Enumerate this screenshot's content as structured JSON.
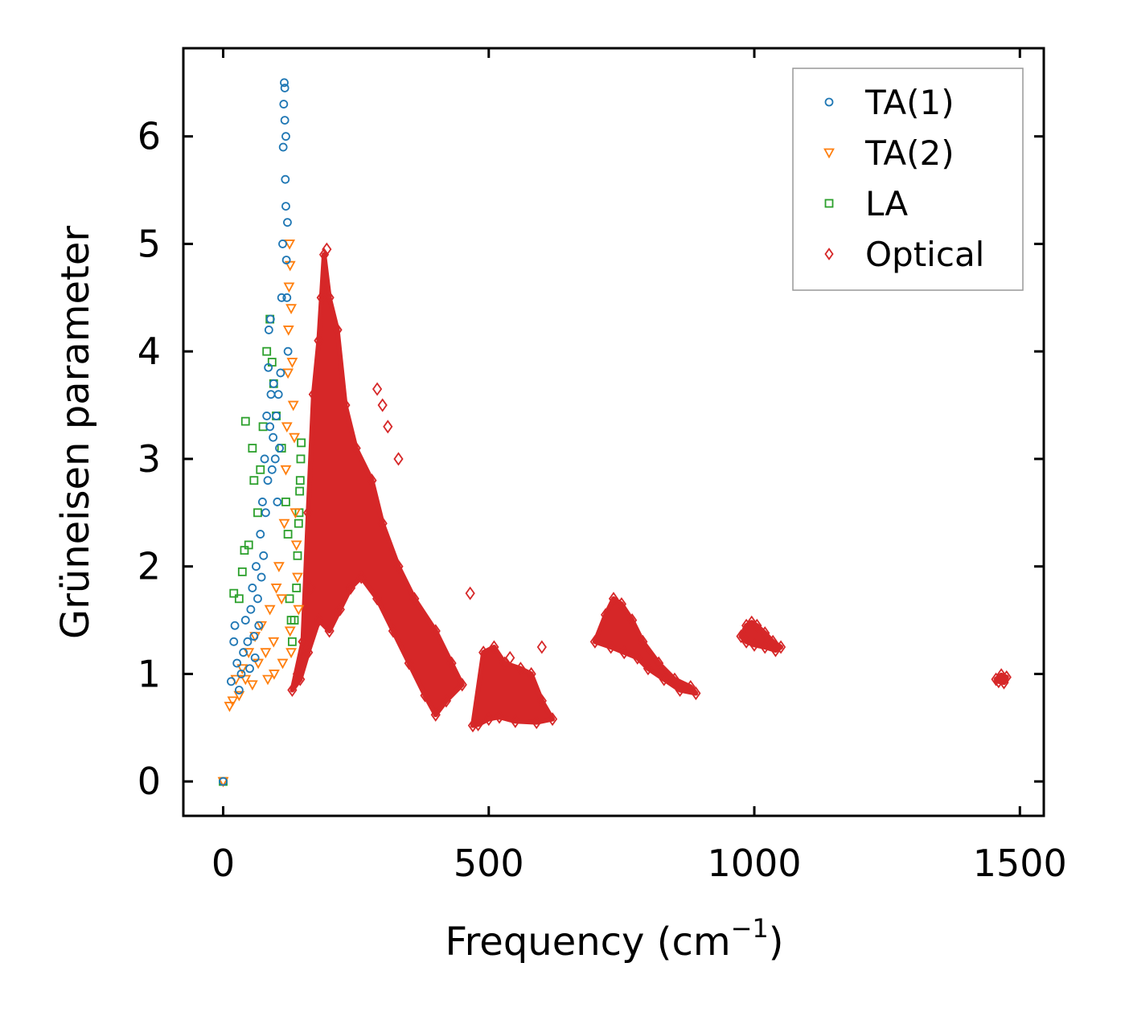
{
  "chart_data": {
    "type": "scatter",
    "title": "",
    "xlabel": "Frequency (cm",
    "xlabel_sup": "−1",
    "xlabel_tail": ")",
    "ylabel": "Grüneisen parameter",
    "xlim": [
      -75,
      1545
    ],
    "ylim": [
      -0.32,
      6.82
    ],
    "xticks": [
      0,
      500,
      1000,
      1500
    ],
    "yticks": [
      0,
      1,
      2,
      3,
      4,
      5,
      6
    ],
    "xtick_labels": [
      "0",
      "500",
      "1000",
      "1500"
    ],
    "ytick_labels": [
      "0",
      "1",
      "2",
      "3",
      "4",
      "5",
      "6"
    ],
    "grid": false,
    "legend_position": "top-right",
    "series": [
      {
        "name": "TA(1)",
        "marker": "circle",
        "color": "#1f77b4",
        "points": [
          [
            0,
            0
          ],
          [
            15,
            0.93
          ],
          [
            20,
            1.3
          ],
          [
            22,
            1.45
          ],
          [
            26,
            1.1
          ],
          [
            30,
            0.85
          ],
          [
            34,
            1.0
          ],
          [
            38,
            1.2
          ],
          [
            42,
            1.5
          ],
          [
            46,
            1.3
          ],
          [
            50,
            1.05
          ],
          [
            52,
            1.6
          ],
          [
            55,
            1.8
          ],
          [
            58,
            1.35
          ],
          [
            60,
            1.15
          ],
          [
            62,
            2.0
          ],
          [
            65,
            1.7
          ],
          [
            67,
            1.45
          ],
          [
            70,
            2.3
          ],
          [
            72,
            1.9
          ],
          [
            74,
            2.6
          ],
          [
            76,
            2.1
          ],
          [
            78,
            3.0
          ],
          [
            80,
            2.5
          ],
          [
            82,
            3.4
          ],
          [
            84,
            2.8
          ],
          [
            85,
            3.85
          ],
          [
            86,
            4.2
          ],
          [
            88,
            3.3
          ],
          [
            89,
            4.3
          ],
          [
            90,
            3.6
          ],
          [
            92,
            2.9
          ],
          [
            94,
            3.2
          ],
          [
            95,
            3.7
          ],
          [
            98,
            3.0
          ],
          [
            100,
            3.4
          ],
          [
            102,
            2.6
          ],
          [
            104,
            3.6
          ],
          [
            106,
            3.1
          ],
          [
            108,
            3.8
          ],
          [
            110,
            4.5
          ],
          [
            112,
            5.0
          ],
          [
            113,
            5.9
          ],
          [
            114,
            6.3
          ],
          [
            115,
            6.5
          ],
          [
            116,
            6.45
          ],
          [
            117,
            5.6
          ],
          [
            118,
            5.35
          ],
          [
            119,
            4.85
          ],
          [
            120,
            4.5
          ],
          [
            122,
            4.0
          ],
          [
            121,
            5.2
          ],
          [
            118,
            6.0
          ],
          [
            116,
            6.15
          ]
        ]
      },
      {
        "name": "TA(2)",
        "marker": "triangle-down",
        "color": "#ff7f0e",
        "points": [
          [
            0,
            0
          ],
          [
            12,
            0.7
          ],
          [
            18,
            0.75
          ],
          [
            24,
            0.95
          ],
          [
            30,
            0.8
          ],
          [
            36,
            1.05
          ],
          [
            42,
            0.95
          ],
          [
            48,
            1.2
          ],
          [
            55,
            0.9
          ],
          [
            60,
            1.35
          ],
          [
            66,
            1.1
          ],
          [
            72,
            1.45
          ],
          [
            80,
            1.2
          ],
          [
            88,
            1.6
          ],
          [
            95,
            1.3
          ],
          [
            100,
            1.8
          ],
          [
            105,
            2.0
          ],
          [
            110,
            1.7
          ],
          [
            115,
            2.4
          ],
          [
            118,
            2.9
          ],
          [
            120,
            3.3
          ],
          [
            122,
            3.8
          ],
          [
            123,
            4.2
          ],
          [
            124,
            4.6
          ],
          [
            125,
            5.0
          ],
          [
            126,
            4.8
          ],
          [
            128,
            4.4
          ],
          [
            130,
            3.9
          ],
          [
            132,
            3.5
          ],
          [
            134,
            3.2
          ],
          [
            136,
            2.5
          ],
          [
            138,
            2.2
          ],
          [
            140,
            1.9
          ],
          [
            142,
            1.6
          ],
          [
            126,
            1.4
          ],
          [
            128,
            1.2
          ],
          [
            112,
            1.1
          ],
          [
            96,
            1.0
          ],
          [
            84,
            0.95
          ]
        ]
      },
      {
        "name": "LA",
        "marker": "square",
        "color": "#2ca02c",
        "points": [
          [
            0,
            0
          ],
          [
            20,
            1.75
          ],
          [
            30,
            1.7
          ],
          [
            36,
            1.95
          ],
          [
            40,
            2.15
          ],
          [
            42,
            3.35
          ],
          [
            48,
            2.2
          ],
          [
            55,
            3.1
          ],
          [
            58,
            2.8
          ],
          [
            65,
            2.5
          ],
          [
            70,
            2.9
          ],
          [
            75,
            3.3
          ],
          [
            82,
            4.0
          ],
          [
            88,
            4.3
          ],
          [
            92,
            3.9
          ],
          [
            95,
            3.7
          ],
          [
            100,
            3.4
          ],
          [
            110,
            3.1
          ],
          [
            118,
            2.6
          ],
          [
            122,
            2.3
          ],
          [
            125,
            1.7
          ],
          [
            128,
            1.5
          ],
          [
            130,
            1.3
          ],
          [
            134,
            1.5
          ],
          [
            138,
            1.8
          ],
          [
            140,
            2.1
          ],
          [
            142,
            2.4
          ],
          [
            144,
            2.7
          ],
          [
            146,
            3.0
          ],
          [
            147,
            3.15
          ],
          [
            145,
            2.8
          ],
          [
            143,
            2.5
          ]
        ]
      },
      {
        "name": "Optical",
        "marker": "diamond",
        "color": "#d62728",
        "clusters": [
          [
            [
              130,
              0.85
            ],
            [
              150,
              1.3
            ],
            [
              160,
              2.5
            ],
            [
              170,
              3.6
            ],
            [
              180,
              4.1
            ],
            [
              190,
              4.9
            ],
            [
              200,
              4.5
            ],
            [
              215,
              4.2
            ],
            [
              230,
              3.5
            ],
            [
              250,
              3.1
            ],
            [
              280,
              2.8
            ],
            [
              300,
              2.4
            ],
            [
              330,
              2.0
            ],
            [
              360,
              1.7
            ],
            [
              400,
              1.4
            ],
            [
              430,
              1.1
            ],
            [
              450,
              0.9
            ],
            [
              420,
              0.75
            ],
            [
              400,
              0.62
            ],
            [
              380,
              0.8
            ],
            [
              350,
              1.1
            ],
            [
              320,
              1.4
            ],
            [
              290,
              1.7
            ],
            [
              260,
              1.9
            ],
            [
              240,
              1.8
            ],
            [
              220,
              1.6
            ],
            [
              200,
              1.4
            ],
            [
              180,
              1.5
            ],
            [
              160,
              1.2
            ],
            [
              145,
              0.95
            ]
          ],
          [
            [
              470,
              0.52
            ],
            [
              490,
              1.2
            ],
            [
              510,
              1.25
            ],
            [
              530,
              1.1
            ],
            [
              560,
              1.05
            ],
            [
              580,
              1.0
            ],
            [
              600,
              0.75
            ],
            [
              620,
              0.58
            ],
            [
              590,
              0.55
            ],
            [
              550,
              0.56
            ],
            [
              520,
              0.6
            ],
            [
              500,
              0.58
            ],
            [
              480,
              0.53
            ]
          ],
          [
            [
              700,
              1.3
            ],
            [
              720,
              1.55
            ],
            [
              735,
              1.7
            ],
            [
              750,
              1.65
            ],
            [
              770,
              1.5
            ],
            [
              790,
              1.3
            ],
            [
              820,
              1.1
            ],
            [
              850,
              0.95
            ],
            [
              880,
              0.88
            ],
            [
              890,
              0.82
            ],
            [
              860,
              0.85
            ],
            [
              830,
              0.95
            ],
            [
              800,
              1.05
            ],
            [
              780,
              1.15
            ],
            [
              755,
              1.2
            ],
            [
              730,
              1.25
            ]
          ],
          [
            [
              975,
              1.35
            ],
            [
              985,
              1.45
            ],
            [
              995,
              1.48
            ],
            [
              1005,
              1.45
            ],
            [
              1020,
              1.38
            ],
            [
              1035,
              1.3
            ],
            [
              1050,
              1.25
            ],
            [
              1040,
              1.22
            ],
            [
              1020,
              1.25
            ],
            [
              1000,
              1.27
            ],
            [
              985,
              1.3
            ]
          ],
          [
            [
              1455,
              0.95
            ],
            [
              1465,
              0.99
            ],
            [
              1475,
              0.97
            ],
            [
              1470,
              0.92
            ],
            [
              1460,
              0.93
            ]
          ]
        ],
        "extra_points": [
          [
            140,
            1.0
          ],
          [
            165,
            1.8
          ],
          [
            185,
            4.5
          ],
          [
            195,
            4.95
          ],
          [
            290,
            3.65
          ],
          [
            300,
            3.5
          ],
          [
            310,
            3.3
          ],
          [
            330,
            3.0
          ],
          [
            465,
            1.75
          ],
          [
            540,
            1.15
          ],
          [
            600,
            1.25
          ]
        ]
      }
    ]
  }
}
